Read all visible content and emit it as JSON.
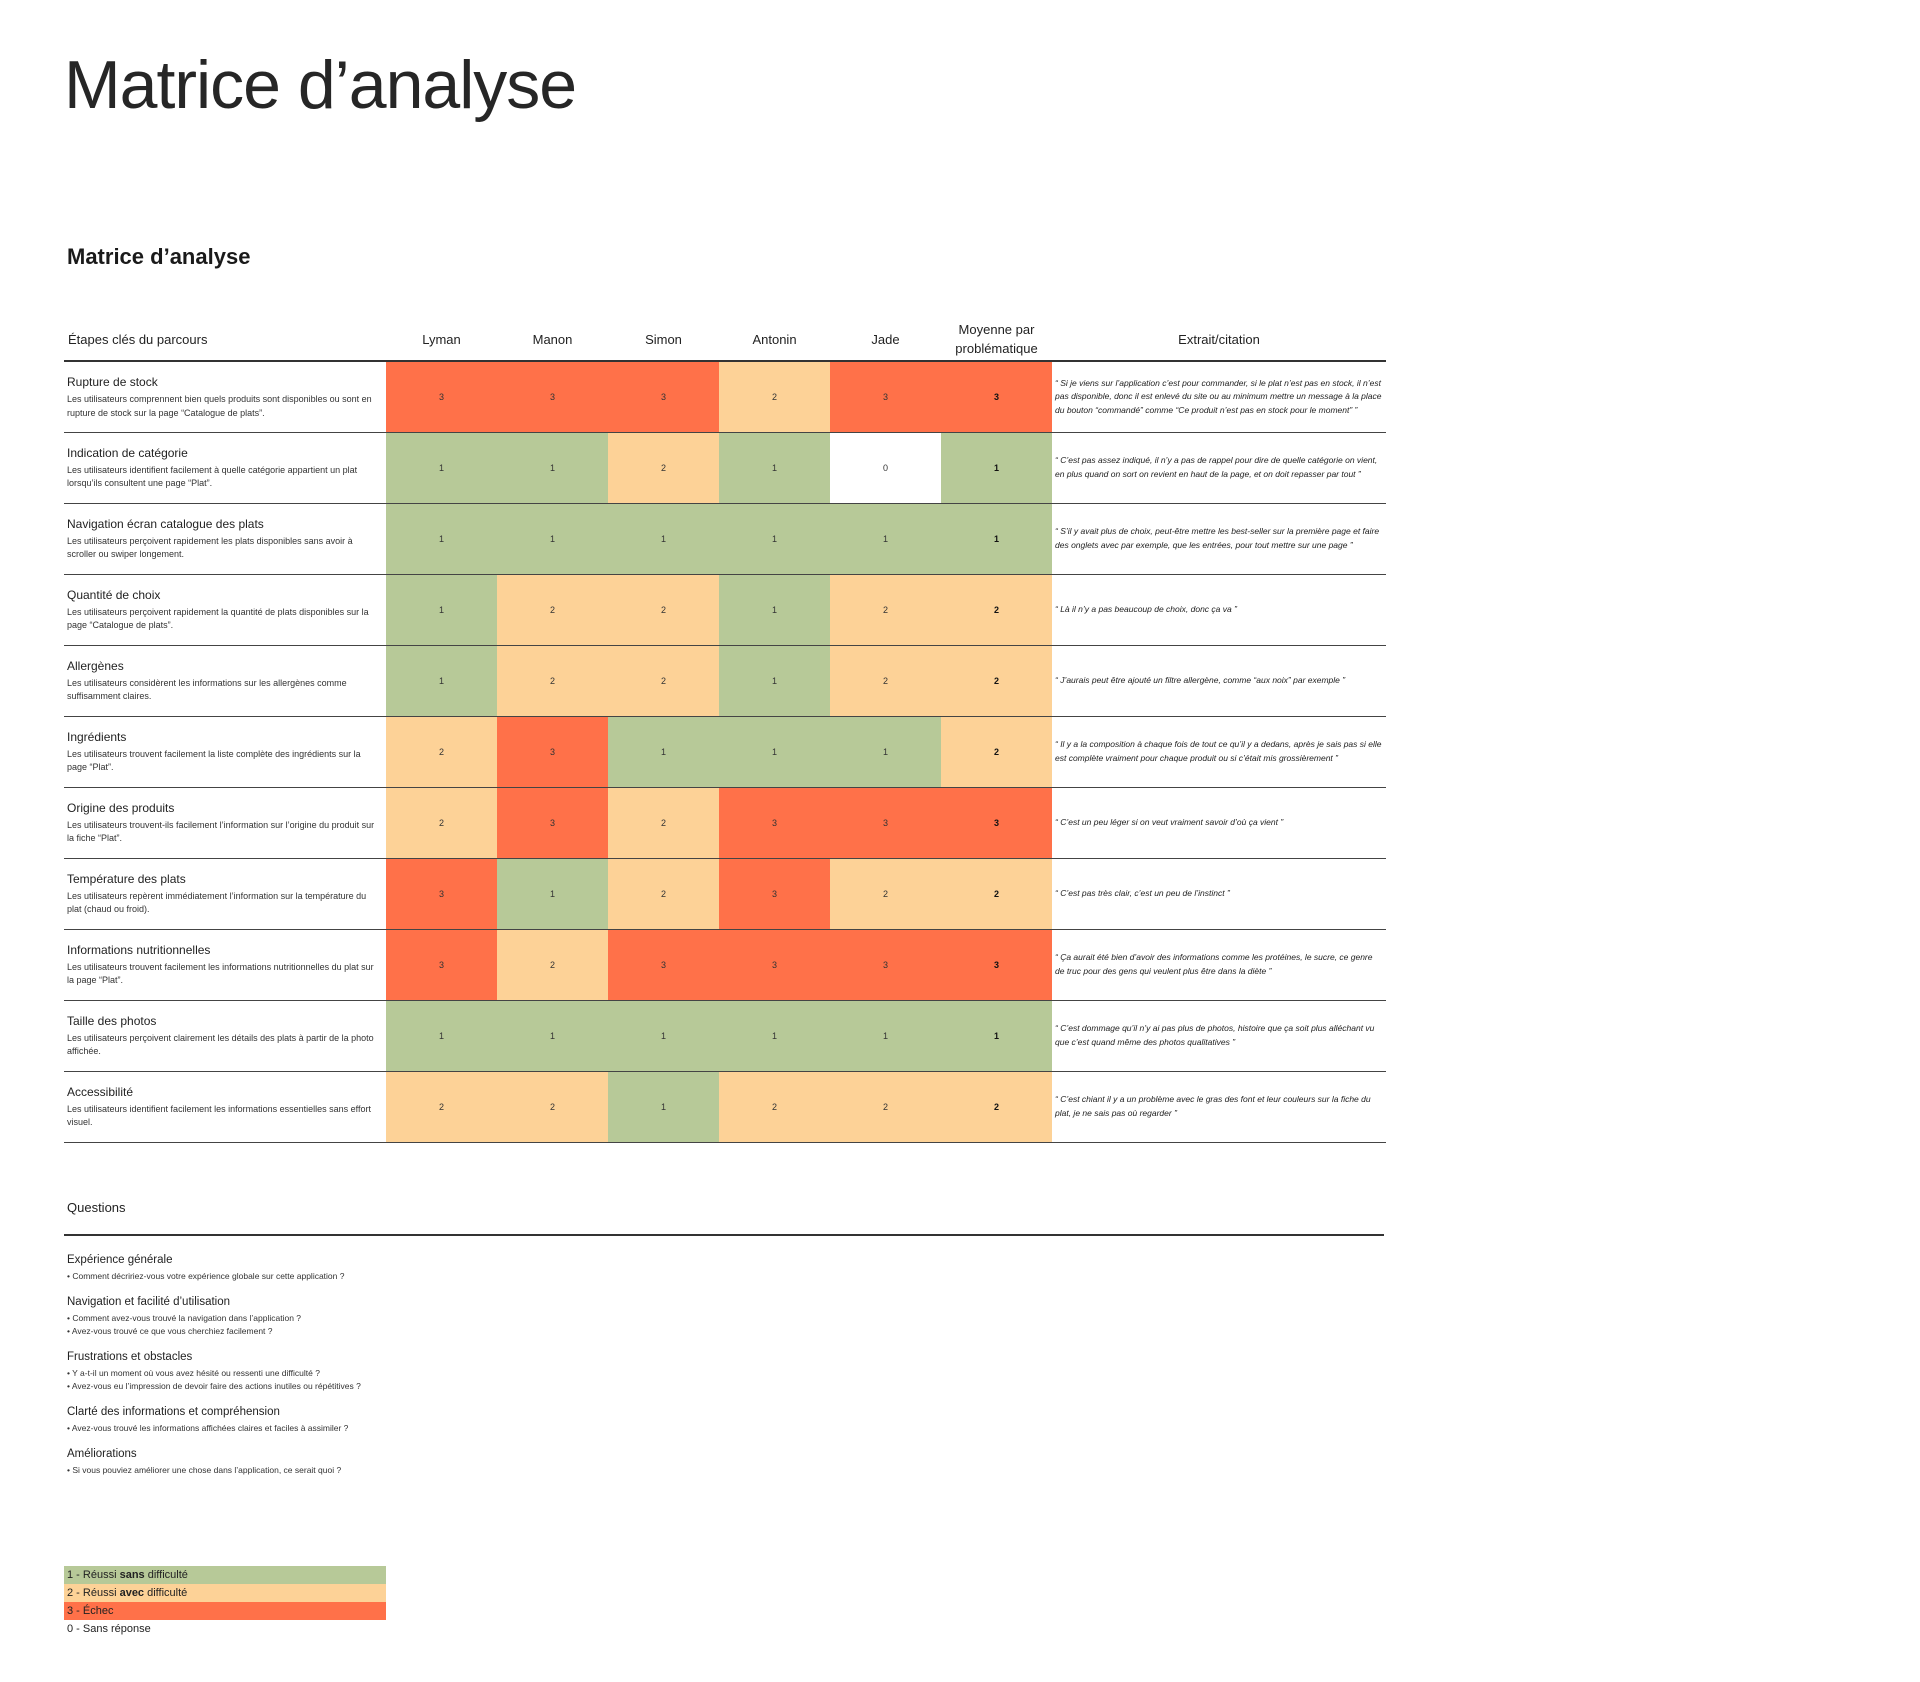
{
  "page": {
    "title": "Matrice d’analyse",
    "section_title": "Matrice d’analyse"
  },
  "colors": {
    "score_1": "#b7c998",
    "score_2": "#fdd297",
    "score_3": "#ff7149",
    "score_0": "#ffffff"
  },
  "matrix": {
    "headers": {
      "step": "Étapes clés du parcours",
      "participants": [
        "Lyman",
        "Manon",
        "Simon",
        "Antonin",
        "Jade"
      ],
      "average": "Moyenne par problématique",
      "quote": "Extrait/citation"
    },
    "rows": [
      {
        "title": "Rupture de stock",
        "desc": "Les utilisateurs comprennent bien quels produits sont disponibles ou sont en rupture de stock sur la page “Catalogue de plats”.",
        "scores": [
          3,
          3,
          3,
          2,
          3
        ],
        "average": 3,
        "quote": "“ Si je viens sur l’application c’est pour commander, si le plat n’est pas en stock, il n’est pas disponible, donc il est enlevé du site ou au minimum mettre un message à la place du bouton “commandé” comme “Ce produit n’est pas en stock pour le moment” ”"
      },
      {
        "title": "Indication de catégorie",
        "desc": "Les utilisateurs identifient facilement à quelle catégorie appartient un plat lorsqu’ils consultent une page “Plat”.",
        "scores": [
          1,
          1,
          2,
          1,
          0
        ],
        "average": 1,
        "quote": "“ C’est pas assez indiqué, il n’y a pas de rappel pour dire de quelle catégorie on vient, en plus quand on sort on revient en haut de la page, et on doit repasser par tout ”"
      },
      {
        "title": "Navigation écran catalogue des plats",
        "desc": "Les utilisateurs perçoivent rapidement les plats disponibles sans avoir à scroller ou swiper longement.",
        "scores": [
          1,
          1,
          1,
          1,
          1
        ],
        "average": 1,
        "quote": "“ S’il y avait plus de choix, peut-être mettre les best-seller sur la première page et faire des onglets avec par exemple, que les entrées, pour tout mettre sur une page ”"
      },
      {
        "title": "Quantité de choix",
        "desc": "Les utilisateurs perçoivent rapidement la quantité de plats disponibles sur la page “Catalogue de plats”.",
        "scores": [
          1,
          2,
          2,
          1,
          2
        ],
        "average": 2,
        "quote": "“ Là il n’y a pas beaucoup de choix, donc ça va ”"
      },
      {
        "title": "Allergènes",
        "desc": "Les utilisateurs considèrent les informations sur les allergènes comme suffisamment claires.",
        "scores": [
          1,
          2,
          2,
          1,
          2
        ],
        "average": 2,
        "quote": "“ J’aurais peut être ajouté un filtre allergène, comme “aux noix” par exemple ”"
      },
      {
        "title": "Ingrédients",
        "desc": "Les utilisateurs trouvent facilement la liste complète des ingrédients sur la page “Plat”.",
        "scores": [
          2,
          3,
          1,
          1,
          1
        ],
        "average": 2,
        "quote": "“ Il y a la composition à chaque fois de tout ce qu’il y a dedans, après je sais pas si elle est complète vraiment pour chaque produit ou si c’était mis grossièrement ”"
      },
      {
        "title": "Origine des produits",
        "desc": "Les utilisateurs trouvent-ils facilement l’information sur l’origine du produit sur la fiche “Plat”.",
        "scores": [
          2,
          3,
          2,
          3,
          3
        ],
        "average": 3,
        "quote": "“ C’est un peu léger si on veut vraiment savoir d’où ça vient ”"
      },
      {
        "title": "Température des plats",
        "desc": "Les utilisateurs repèrent immédiatement l’information sur la température du plat (chaud ou froid).",
        "scores": [
          3,
          1,
          2,
          3,
          2
        ],
        "average": 2,
        "quote": "“ C’est pas très clair, c’est un peu de l’instinct ”"
      },
      {
        "title": "Informations nutritionnelles",
        "desc": "Les utilisateurs trouvent facilement les informations nutritionnelles du plat sur la page “Plat”.",
        "scores": [
          3,
          2,
          3,
          3,
          3
        ],
        "average": 3,
        "quote": "“ Ça aurait été bien d’avoir des informations comme les protéines, le sucre, ce genre de truc pour des gens qui veulent plus être dans la diète ”"
      },
      {
        "title": "Taille des photos",
        "desc": "Les utilisateurs perçoivent clairement les détails des plats à partir de la photo affichée.",
        "scores": [
          1,
          1,
          1,
          1,
          1
        ],
        "average": 1,
        "quote": "“ C’est dommage qu’il n’y ai pas plus de photos, histoire que ça soit plus alléchant vu que c’est quand même des photos qualitatives ”"
      },
      {
        "title": "Accessibilité",
        "desc": "Les utilisateurs identifient facilement les informations essentielles sans effort visuel.",
        "scores": [
          2,
          2,
          1,
          2,
          2
        ],
        "average": 2,
        "quote": "“ C’est chiant il y a un problème avec le gras des font et leur couleurs sur la fiche du plat, je ne sais pas où regarder ”"
      }
    ]
  },
  "questions": {
    "header": "Questions",
    "groups": [
      {
        "title": "Expérience générale",
        "items": [
          "• Comment décririez-vous votre expérience globale sur cette application ?"
        ]
      },
      {
        "title": "Navigation et facilité d’utilisation",
        "items": [
          "• Comment avez-vous trouvé la navigation dans l’application ?",
          "• Avez-vous trouvé ce que vous cherchiez facilement ?"
        ]
      },
      {
        "title": "Frustrations et obstacles",
        "items": [
          "• Y a-t-il un moment où vous avez hésité ou ressenti une difficulté ?",
          "• Avez-vous eu l’impression de devoir faire des actions inutiles ou répétitives ?"
        ]
      },
      {
        "title": "Clarté des informations et compréhension",
        "items": [
          "• Avez-vous trouvé les informations affichées claires et faciles à assimiler ?"
        ]
      },
      {
        "title": "Améliorations",
        "items": [
          "• Si vous pouviez améliorer une chose dans l’application, ce serait quoi ?"
        ]
      }
    ]
  },
  "legend": [
    {
      "color_key": "score_1",
      "prefix": "1 -  Réussi ",
      "bold": "sans",
      "suffix": " difficulté"
    },
    {
      "color_key": "score_2",
      "prefix": "2 - Réussi ",
      "bold": "avec",
      "suffix": " difficulté"
    },
    {
      "color_key": "score_3",
      "prefix": "3 - Échec",
      "bold": "",
      "suffix": ""
    },
    {
      "color_key": "score_0",
      "prefix": "0 - Sans réponse",
      "bold": "",
      "suffix": ""
    }
  ]
}
